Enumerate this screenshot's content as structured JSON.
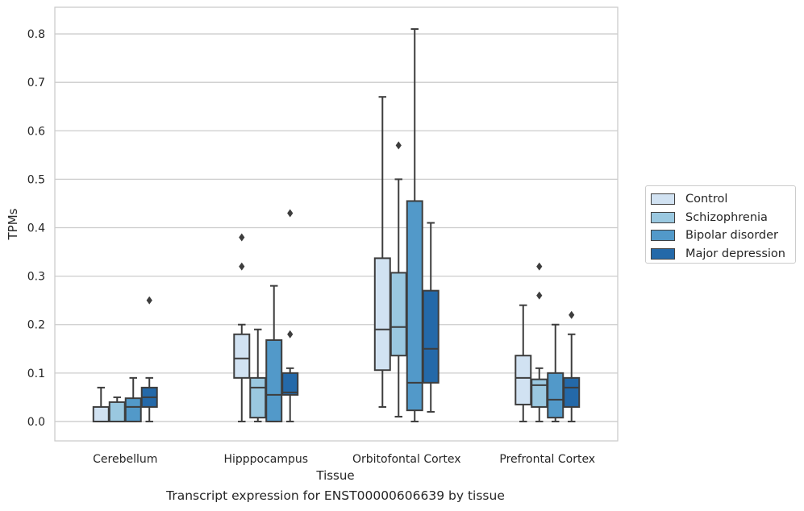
{
  "chart_data": {
    "type": "box",
    "title": "",
    "caption": "Transcript expression for ENST00000606639 by tissue",
    "xlabel": "Tissue",
    "ylabel": "TPMs",
    "ylim": [
      -0.04,
      0.855
    ],
    "yticks": [
      "0.0",
      "0.1",
      "0.2",
      "0.3",
      "0.4",
      "0.5",
      "0.6",
      "0.7",
      "0.8"
    ],
    "grid": "horizontal",
    "legend_position": "right",
    "categories": [
      "Cerebellum",
      "Hipppocampus",
      "Orbitofontal Cortex",
      "Prefrontal Cortex"
    ],
    "series": [
      {
        "name": "Control",
        "color": "#d1e2f2",
        "boxes": [
          {
            "lower_whisker": 0.0,
            "q1": 0.0,
            "median": 0.0,
            "q3": 0.03,
            "upper_whisker": 0.07,
            "outliers": []
          },
          {
            "lower_whisker": 0.0,
            "q1": 0.09,
            "median": 0.13,
            "q3": 0.18,
            "upper_whisker": 0.2,
            "outliers": [
              0.32,
              0.38
            ]
          },
          {
            "lower_whisker": 0.03,
            "q1": 0.106,
            "median": 0.19,
            "q3": 0.337,
            "upper_whisker": 0.67,
            "outliers": []
          },
          {
            "lower_whisker": 0.0,
            "q1": 0.035,
            "median": 0.09,
            "q3": 0.136,
            "upper_whisker": 0.24,
            "outliers": []
          }
        ]
      },
      {
        "name": "Schizophrenia",
        "color": "#9ac8e0",
        "boxes": [
          {
            "lower_whisker": 0.0,
            "q1": 0.0,
            "median": 0.0,
            "q3": 0.04,
            "upper_whisker": 0.05,
            "outliers": []
          },
          {
            "lower_whisker": 0.0,
            "q1": 0.008,
            "median": 0.07,
            "q3": 0.09,
            "upper_whisker": 0.19,
            "outliers": []
          },
          {
            "lower_whisker": 0.01,
            "q1": 0.136,
            "median": 0.195,
            "q3": 0.307,
            "upper_whisker": 0.5,
            "outliers": [
              0.57
            ]
          },
          {
            "lower_whisker": 0.0,
            "q1": 0.03,
            "median": 0.075,
            "q3": 0.087,
            "upper_whisker": 0.11,
            "outliers": [
              0.26,
              0.32
            ]
          }
        ]
      },
      {
        "name": "Bipolar disorder",
        "color": "#5299c9",
        "boxes": [
          {
            "lower_whisker": 0.0,
            "q1": 0.0,
            "median": 0.03,
            "q3": 0.048,
            "upper_whisker": 0.09,
            "outliers": []
          },
          {
            "lower_whisker": 0.0,
            "q1": 0.0,
            "median": 0.055,
            "q3": 0.168,
            "upper_whisker": 0.28,
            "outliers": []
          },
          {
            "lower_whisker": 0.0,
            "q1": 0.023,
            "median": 0.08,
            "q3": 0.455,
            "upper_whisker": 0.81,
            "outliers": []
          },
          {
            "lower_whisker": 0.0,
            "q1": 0.008,
            "median": 0.045,
            "q3": 0.1,
            "upper_whisker": 0.2,
            "outliers": []
          }
        ]
      },
      {
        "name": "Major depression",
        "color": "#2469a9",
        "boxes": [
          {
            "lower_whisker": 0.0,
            "q1": 0.03,
            "median": 0.05,
            "q3": 0.07,
            "upper_whisker": 0.09,
            "outliers": [
              0.25
            ]
          },
          {
            "lower_whisker": 0.0,
            "q1": 0.055,
            "median": 0.06,
            "q3": 0.1,
            "upper_whisker": 0.11,
            "outliers": [
              0.18,
              0.43
            ]
          },
          {
            "lower_whisker": 0.02,
            "q1": 0.08,
            "median": 0.15,
            "q3": 0.27,
            "upper_whisker": 0.41,
            "outliers": []
          },
          {
            "lower_whisker": 0.0,
            "q1": 0.03,
            "median": 0.07,
            "q3": 0.09,
            "upper_whisker": 0.18,
            "outliers": [
              0.22
            ]
          }
        ]
      }
    ]
  }
}
